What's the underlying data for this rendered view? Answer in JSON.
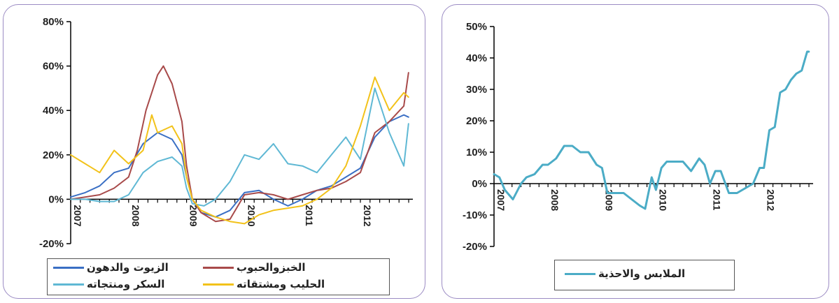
{
  "chart_data": [
    {
      "type": "line",
      "ylim": [
        -0.2,
        0.8
      ],
      "yticks": [
        "-20%",
        "0%",
        "20%",
        "40%",
        "60%",
        "80%"
      ],
      "yticks_values": [
        -0.2,
        0,
        0.2,
        0.4,
        0.6,
        0.8
      ],
      "xlim": [
        2007.0,
        2012.833
      ],
      "xticks": [
        "2007",
        "2008",
        "2009",
        "2010",
        "2011",
        "2012"
      ],
      "xticks_values": [
        2007,
        2008,
        2009,
        2010,
        2011,
        2012
      ],
      "legend": "bottom",
      "series": [
        {
          "name": "الزيوت والدهون",
          "color": "#3a6fc4",
          "x": [
            2007.0,
            2007.25,
            2007.5,
            2007.75,
            2008.0,
            2008.25,
            2008.5,
            2008.75,
            2008.92,
            2009.0,
            2009.1,
            2009.25,
            2009.5,
            2009.75,
            2010.0,
            2010.25,
            2010.5,
            2010.75,
            2011.0,
            2011.25,
            2011.5,
            2011.75,
            2012.0,
            2012.25,
            2012.5,
            2012.75,
            2012.83
          ],
          "y": [
            0.01,
            0.03,
            0.06,
            0.12,
            0.14,
            0.25,
            0.3,
            0.27,
            0.2,
            0.1,
            0.0,
            -0.06,
            -0.08,
            -0.05,
            0.03,
            0.04,
            0.0,
            -0.03,
            0.0,
            0.04,
            0.06,
            0.1,
            0.14,
            0.28,
            0.35,
            0.38,
            0.37
          ]
        },
        {
          "name": "الخبزوالحبوب",
          "color": "#a84a4a",
          "x": [
            2007.0,
            2007.25,
            2007.5,
            2007.75,
            2008.0,
            2008.15,
            2008.3,
            2008.5,
            2008.6,
            2008.75,
            2008.92,
            2009.0,
            2009.1,
            2009.25,
            2009.5,
            2009.75,
            2010.0,
            2010.25,
            2010.5,
            2010.75,
            2011.0,
            2011.25,
            2011.5,
            2011.75,
            2012.0,
            2012.25,
            2012.5,
            2012.75,
            2012.83
          ],
          "y": [
            0.0,
            0.01,
            0.02,
            0.05,
            0.1,
            0.22,
            0.4,
            0.56,
            0.6,
            0.52,
            0.35,
            0.15,
            0.0,
            -0.06,
            -0.1,
            -0.09,
            0.02,
            0.03,
            0.02,
            0.0,
            0.02,
            0.04,
            0.05,
            0.08,
            0.12,
            0.3,
            0.35,
            0.42,
            0.57
          ]
        },
        {
          "name": "السكر ومنتجاته",
          "color": "#5fb8d4",
          "x": [
            2007.0,
            2007.25,
            2007.5,
            2007.75,
            2008.0,
            2008.25,
            2008.5,
            2008.75,
            2008.92,
            2009.0,
            2009.1,
            2009.3,
            2009.5,
            2009.75,
            2010.0,
            2010.25,
            2010.5,
            2010.75,
            2011.0,
            2011.25,
            2011.5,
            2011.75,
            2012.0,
            2012.25,
            2012.5,
            2012.75,
            2012.83
          ],
          "y": [
            0.0,
            0.0,
            -0.01,
            -0.01,
            0.02,
            0.12,
            0.17,
            0.19,
            0.15,
            0.05,
            -0.02,
            -0.03,
            0.0,
            0.08,
            0.2,
            0.18,
            0.25,
            0.16,
            0.15,
            0.12,
            0.2,
            0.28,
            0.18,
            0.5,
            0.3,
            0.15,
            0.34
          ]
        },
        {
          "name": "الحليب ومشتقاته",
          "color": "#f2c21a",
          "x": [
            2007.0,
            2007.25,
            2007.5,
            2007.75,
            2008.0,
            2008.25,
            2008.4,
            2008.5,
            2008.75,
            2008.92,
            2009.0,
            2009.1,
            2009.25,
            2009.5,
            2009.75,
            2010.0,
            2010.25,
            2010.5,
            2010.75,
            2011.0,
            2011.25,
            2011.5,
            2011.75,
            2012.0,
            2012.25,
            2012.5,
            2012.75,
            2012.83
          ],
          "y": [
            0.2,
            0.16,
            0.12,
            0.22,
            0.16,
            0.22,
            0.38,
            0.3,
            0.33,
            0.25,
            0.1,
            0.0,
            -0.05,
            -0.08,
            -0.1,
            -0.11,
            -0.07,
            -0.05,
            -0.04,
            -0.03,
            0.0,
            0.05,
            0.15,
            0.33,
            0.55,
            0.4,
            0.48,
            0.46
          ]
        }
      ]
    },
    {
      "type": "line",
      "ylim": [
        -0.2,
        0.5
      ],
      "yticks": [
        "-20%",
        "-10%",
        "0%",
        "10%",
        "20%",
        "30%",
        "40%",
        "50%"
      ],
      "yticks_values": [
        -0.2,
        -0.1,
        0,
        0.1,
        0.2,
        0.3,
        0.4,
        0.5
      ],
      "xlim": [
        2007.0,
        2012.833
      ],
      "xticks": [
        "2007",
        "2008",
        "2009",
        "2010",
        "2011",
        "2012"
      ],
      "xticks_values": [
        2007,
        2008,
        2009,
        2010,
        2011,
        2012
      ],
      "legend": "bottom",
      "series": [
        {
          "name": "الملابس والاحذية",
          "color": "#4bacc6",
          "x": [
            2007.0,
            2007.1,
            2007.2,
            2007.35,
            2007.5,
            2007.6,
            2007.75,
            2007.9,
            2008.0,
            2008.15,
            2008.3,
            2008.45,
            2008.6,
            2008.75,
            2008.9,
            2009.0,
            2009.1,
            2009.25,
            2009.4,
            2009.55,
            2009.7,
            2009.8,
            2009.92,
            2010.0,
            2010.1,
            2010.2,
            2010.35,
            2010.5,
            2010.65,
            2010.8,
            2010.9,
            2011.0,
            2011.1,
            2011.2,
            2011.35,
            2011.5,
            2011.6,
            2011.7,
            2011.8,
            2011.92,
            2012.0,
            2012.1,
            2012.2,
            2012.3,
            2012.4,
            2012.5,
            2012.6,
            2012.7,
            2012.8,
            2012.83
          ],
          "y": [
            0.03,
            0.02,
            -0.02,
            -0.05,
            0.0,
            0.02,
            0.03,
            0.06,
            0.06,
            0.08,
            0.12,
            0.12,
            0.1,
            0.1,
            0.06,
            0.05,
            -0.03,
            -0.03,
            -0.03,
            -0.05,
            -0.07,
            -0.08,
            0.02,
            -0.02,
            0.05,
            0.07,
            0.07,
            0.07,
            0.04,
            0.08,
            0.06,
            0.0,
            0.04,
            0.04,
            -0.03,
            -0.03,
            -0.02,
            -0.01,
            0.0,
            0.05,
            0.05,
            0.17,
            0.18,
            0.29,
            0.3,
            0.33,
            0.35,
            0.36,
            0.42,
            0.42
          ]
        }
      ]
    }
  ]
}
